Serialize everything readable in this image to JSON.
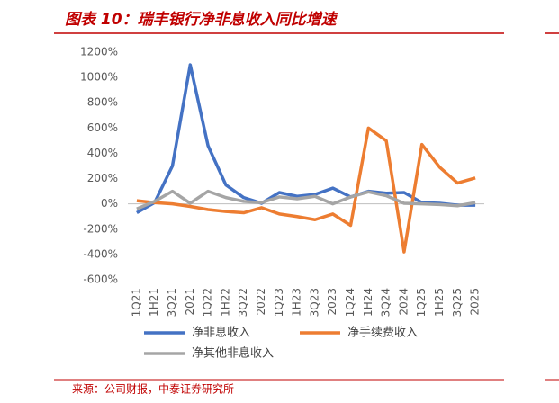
{
  "chart_data": {
    "type": "line",
    "title": "图表 10：瑞丰银行净非息收入同比增速",
    "source": "来源：公司财报，中泰证券研究所",
    "categories": [
      "1Q21",
      "1H21",
      "3Q21",
      "2021",
      "1Q22",
      "1H22",
      "3Q22",
      "2022",
      "1Q23",
      "1H23",
      "3Q23",
      "2023",
      "1Q24",
      "1H24",
      "3Q24",
      "2024",
      "1Q25",
      "1H25",
      "3Q25",
      "2025"
    ],
    "series": [
      {
        "name": "净非息收入",
        "color": "#4472c4",
        "values": [
          -70,
          10,
          300,
          1100,
          460,
          150,
          50,
          5,
          90,
          60,
          75,
          125,
          55,
          100,
          85,
          90,
          10,
          5,
          -10,
          -10
        ]
      },
      {
        "name": "净手续费收入",
        "color": "#ed7d31",
        "values": [
          25,
          10,
          0,
          -20,
          -45,
          -60,
          -70,
          -30,
          -80,
          -100,
          -125,
          -80,
          -170,
          600,
          500,
          -380,
          470,
          290,
          165,
          205
        ]
      },
      {
        "name": "净其他非息收入",
        "color": "#a5a5a5",
        "values": [
          -40,
          20,
          100,
          5,
          100,
          50,
          20,
          10,
          55,
          40,
          60,
          0,
          55,
          95,
          65,
          5,
          0,
          -5,
          -15,
          10
        ]
      }
    ],
    "ylim": [
      -600,
      1200
    ],
    "yticks": [
      {
        "value": -600,
        "label": "-600%"
      },
      {
        "value": -400,
        "label": "-400%"
      },
      {
        "value": -200,
        "label": "-200%"
      },
      {
        "value": 0,
        "label": "0%"
      },
      {
        "value": 200,
        "label": "200%"
      },
      {
        "value": 400,
        "label": "400%"
      },
      {
        "value": 600,
        "label": "600%"
      },
      {
        "value": 800,
        "label": "800%"
      },
      {
        "value": 1000,
        "label": "1000%"
      },
      {
        "value": 1200,
        "label": "1200%"
      }
    ],
    "grid": false
  }
}
